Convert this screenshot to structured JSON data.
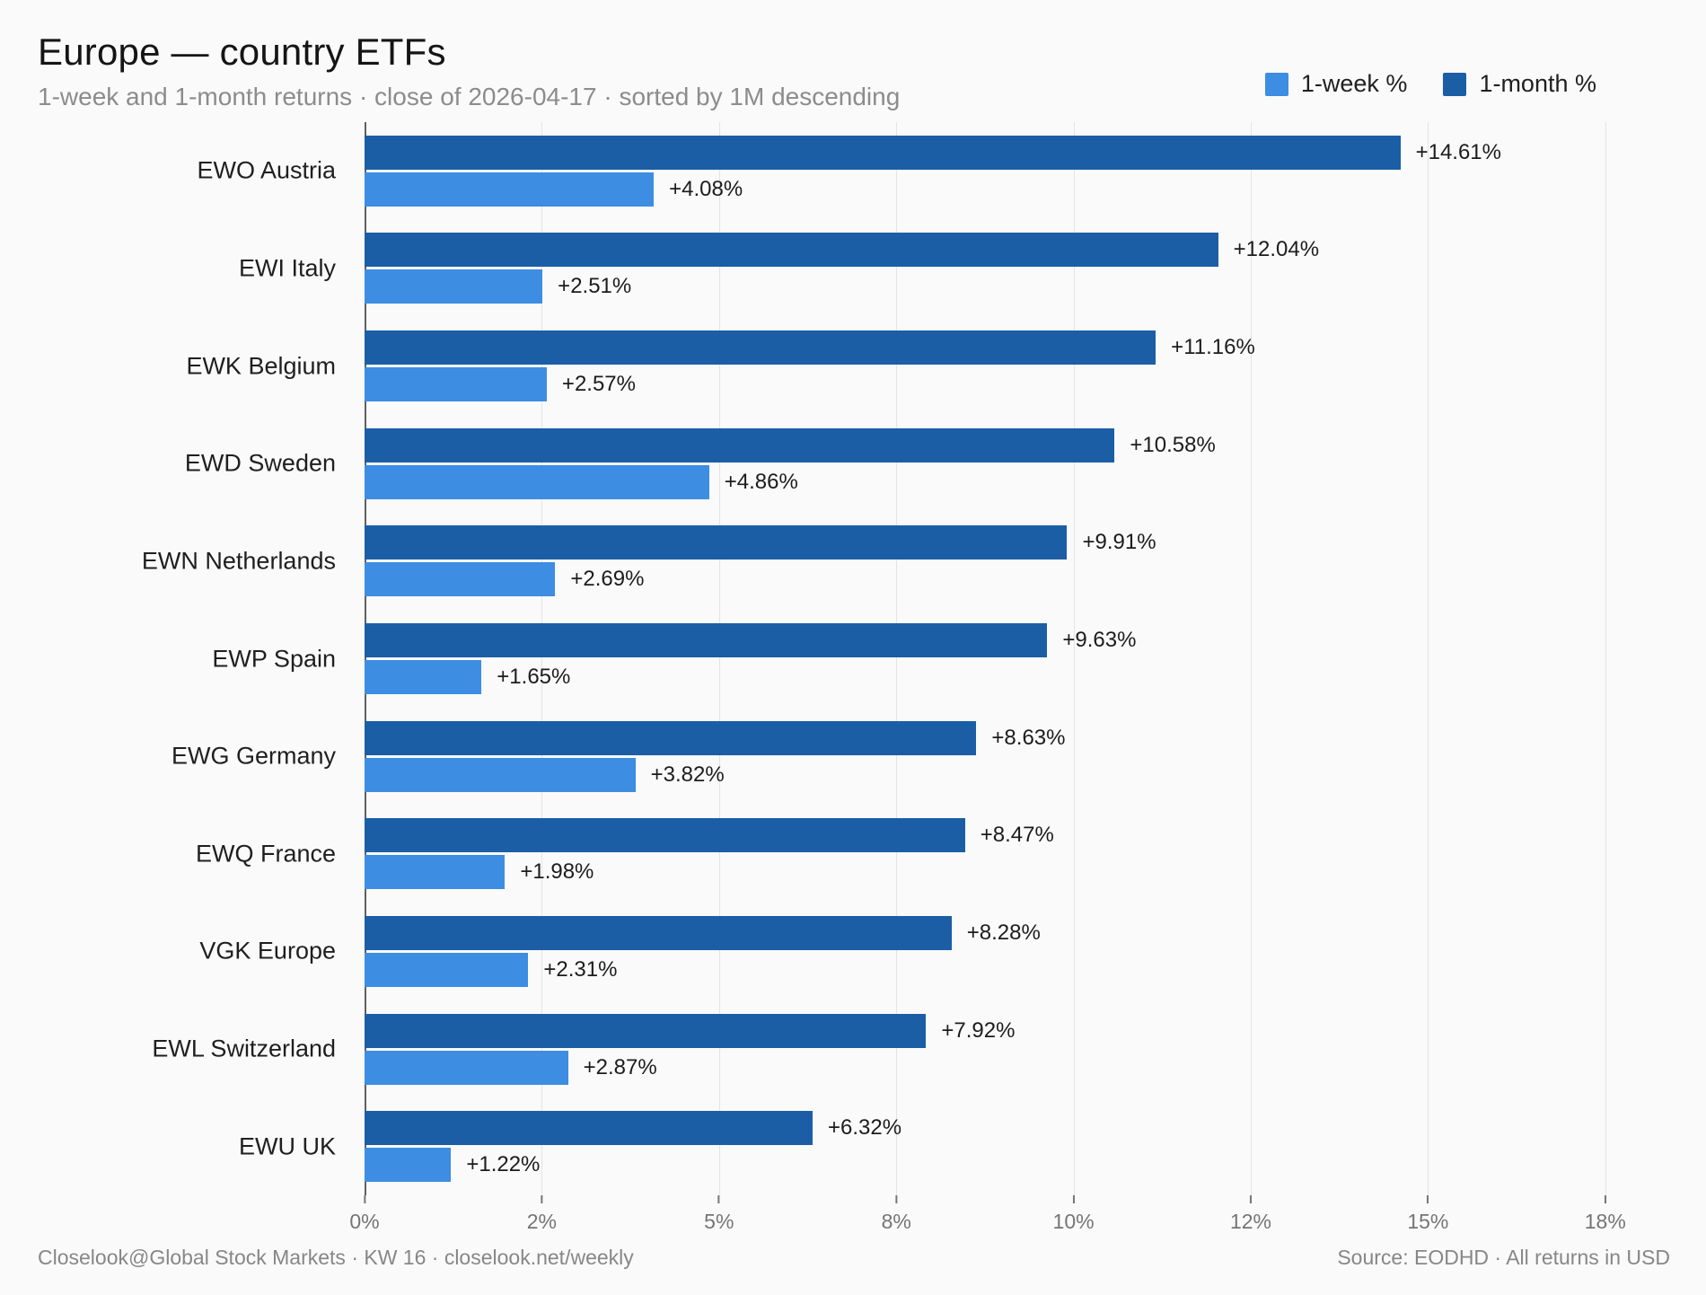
{
  "header": {
    "title": "Europe — country ETFs",
    "subtitle": "1-week and 1-month returns · close of 2026-04-17 · sorted by 1M descending"
  },
  "legend": {
    "week": {
      "label": "1-week %",
      "color": "#3d8de2"
    },
    "month": {
      "label": "1-month %",
      "color": "#1b5ea6"
    }
  },
  "footer": {
    "left": "Closelook@Global Stock Markets · KW 16 · closelook.net/weekly",
    "right": "Source: EODHD · All returns in USD"
  },
  "colors": {
    "background": "#fafafa",
    "week_bar": "#3d8de2",
    "month_bar": "#1b5ea6",
    "gridline": "#e4e4e4",
    "axis_spine": "#606060"
  },
  "chart_data": {
    "type": "bar",
    "orientation": "horizontal",
    "title": "Europe — country ETFs",
    "subtitle": "1-week and 1-month returns · close of 2026-04-17 · sorted by 1M descending",
    "sorted_by": "1M descending",
    "grid": true,
    "legend_position": "top-right",
    "xlabel": "",
    "ylabel": "",
    "xlim": [
      0,
      18.44
    ],
    "categories": [
      "EWO Austria",
      "EWI Italy",
      "EWK Belgium",
      "EWD Sweden",
      "EWN Netherlands",
      "EWP Spain",
      "EWG Germany",
      "EWQ France",
      "VGK Europe",
      "EWL Switzerland",
      "EWU UK"
    ],
    "series": [
      {
        "name": "1-month %",
        "color": "#1b5ea6",
        "values": [
          14.61,
          12.04,
          11.16,
          10.58,
          9.91,
          9.63,
          8.63,
          8.47,
          8.28,
          7.92,
          6.32
        ],
        "labels": [
          "+14.61%",
          "+12.04%",
          "+11.16%",
          "+10.58%",
          "+9.91%",
          "+9.63%",
          "+8.63%",
          "+8.47%",
          "+8.28%",
          "+7.92%",
          "+6.32%"
        ]
      },
      {
        "name": "1-week %",
        "color": "#3d8de2",
        "values": [
          4.08,
          2.51,
          2.57,
          4.86,
          2.69,
          1.65,
          3.82,
          1.98,
          2.31,
          2.87,
          1.22
        ],
        "labels": [
          "+4.08%",
          "+2.51%",
          "+2.57%",
          "+4.86%",
          "+2.69%",
          "+1.65%",
          "+3.82%",
          "+1.98%",
          "+2.31%",
          "+2.87%",
          "+1.22%"
        ]
      }
    ],
    "xticks": [
      {
        "pos": 0,
        "label": "0%"
      },
      {
        "pos": 2.5,
        "label": "2%"
      },
      {
        "pos": 5,
        "label": "5%"
      },
      {
        "pos": 7.5,
        "label": "8%"
      },
      {
        "pos": 10,
        "label": "10%"
      },
      {
        "pos": 12.5,
        "label": "12%"
      },
      {
        "pos": 15,
        "label": "15%"
      },
      {
        "pos": 17.5,
        "label": "18%"
      }
    ]
  }
}
